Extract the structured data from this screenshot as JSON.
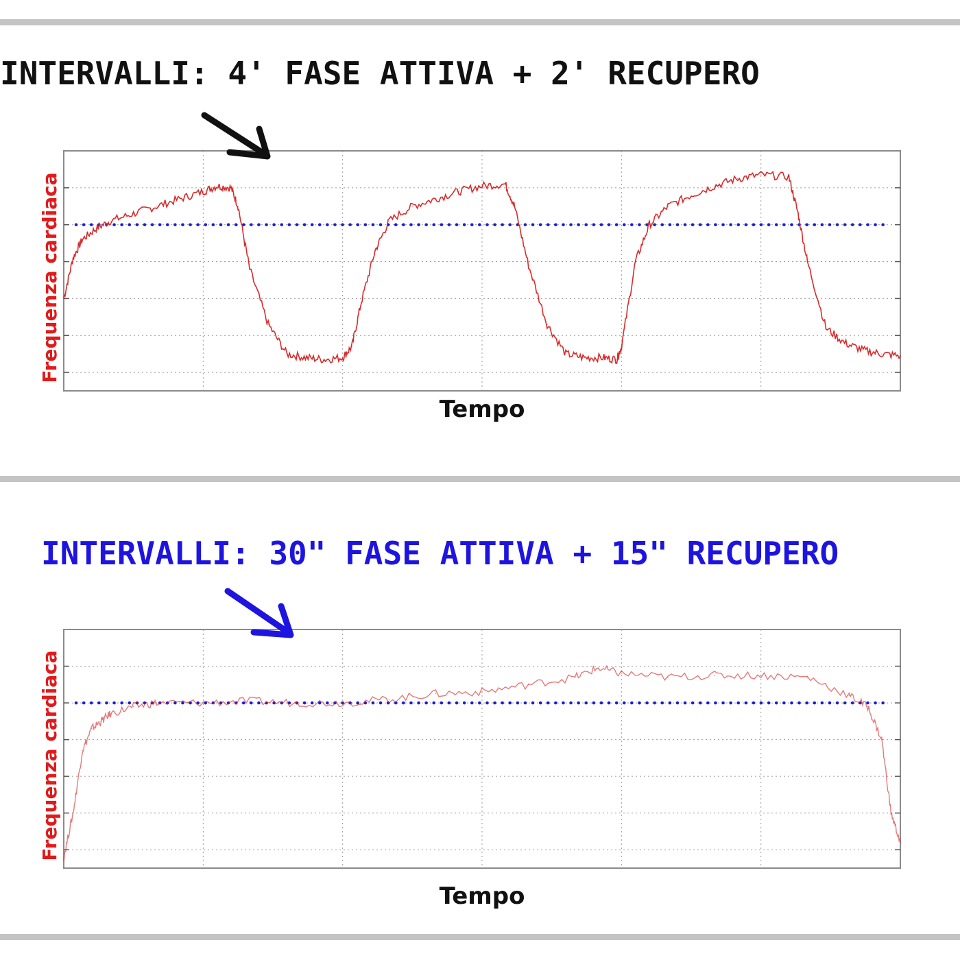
{
  "charts": [
    {
      "title": "INTERVALLI: 4' FASE ATTIVA + 2' RECUPERO",
      "title_color": "#111111",
      "arrow_color": "#111111"
    },
    {
      "title": "INTERVALLI: 30\" FASE ATTIVA + 15\" RECUPERO",
      "title_color": "#1e14e0",
      "arrow_color": "#1e14e0"
    }
  ],
  "colors": {
    "line": "#d62020",
    "threshold": "#1a1ad0",
    "ylabel": "#e01b1b",
    "grid": "#9a9a9a"
  },
  "chart_data": [
    {
      "type": "line",
      "title": "INTERVALLI: 4' FASE ATTIVA + 2' RECUPERO",
      "xlabel": "Tempo",
      "ylabel": "Frequenza cardiaca",
      "xlim": [
        0,
        18
      ],
      "ylim": [
        0,
        6.5
      ],
      "grid": true,
      "threshold": 4.5,
      "series": [
        {
          "name": "Frequenza cardiaca",
          "x": [
            0,
            0.2,
            0.4,
            0.7,
            1.0,
            1.5,
            2.0,
            2.5,
            3.0,
            3.3,
            3.6,
            3.75,
            4.0,
            4.4,
            4.8,
            5.2,
            5.6,
            6.0,
            6.2,
            6.4,
            6.7,
            7.0,
            7.5,
            8.0,
            8.5,
            9.0,
            9.5,
            9.7,
            10.0,
            10.4,
            10.8,
            11.2,
            11.6,
            11.9,
            12.0,
            12.3,
            12.6,
            13.0,
            13.5,
            14.0,
            14.5,
            15.0,
            15.6,
            15.8,
            16.0,
            16.4,
            16.8,
            17.2,
            17.6,
            18.0
          ],
          "values": [
            2.5,
            3.6,
            4.1,
            4.4,
            4.6,
            4.8,
            5.0,
            5.2,
            5.4,
            5.55,
            5.5,
            5.0,
            3.3,
            1.8,
            1.0,
            0.9,
            0.85,
            0.9,
            1.2,
            2.4,
            3.8,
            4.6,
            5.0,
            5.2,
            5.4,
            5.55,
            5.6,
            5.0,
            3.4,
            1.8,
            1.0,
            0.9,
            0.9,
            0.85,
            1.2,
            3.5,
            4.5,
            5.0,
            5.3,
            5.55,
            5.75,
            5.85,
            5.8,
            4.8,
            3.5,
            1.7,
            1.3,
            1.1,
            1.0,
            0.95
          ]
        }
      ]
    },
    {
      "type": "line",
      "title": "INTERVALLI: 30\" FASE ATTIVA + 15\" RECUPERO",
      "xlabel": "Tempo",
      "ylabel": "Frequenza cardiaca",
      "xlim": [
        0,
        18
      ],
      "ylim": [
        0,
        6.5
      ],
      "grid": true,
      "threshold": 4.5,
      "series": [
        {
          "name": "Frequenza cardiaca",
          "x": [
            0,
            0.2,
            0.4,
            0.6,
            0.8,
            1.0,
            1.5,
            2.0,
            3.0,
            4.0,
            5.0,
            6.0,
            7.0,
            8.0,
            9.0,
            10.0,
            11.0,
            11.5,
            12.0,
            13.0,
            14.0,
            15.0,
            16.0,
            16.9,
            17.3,
            17.6,
            17.8,
            18.0
          ],
          "values": [
            0.3,
            1.5,
            3.2,
            3.8,
            4.0,
            4.2,
            4.4,
            4.5,
            4.5,
            4.55,
            4.5,
            4.5,
            4.6,
            4.75,
            4.8,
            5.0,
            5.2,
            5.45,
            5.3,
            5.2,
            5.25,
            5.25,
            5.2,
            4.7,
            4.4,
            3.5,
            1.5,
            0.7
          ]
        }
      ]
    }
  ]
}
